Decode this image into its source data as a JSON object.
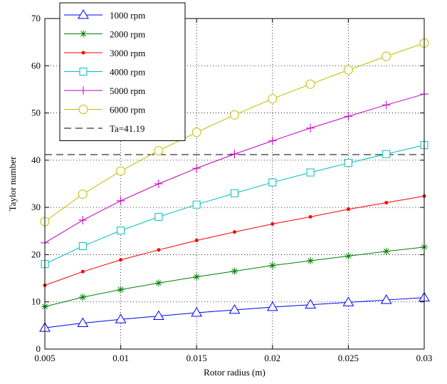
{
  "chart_data": {
    "type": "line",
    "xlabel": "Rotor radius (m)",
    "ylabel": "Taylor number",
    "xlim": [
      0.005,
      0.03
    ],
    "ylim": [
      0,
      70
    ],
    "x_ticks": [
      0.005,
      0.01,
      0.015,
      0.02,
      0.025,
      0.03
    ],
    "x_tick_labels": [
      "0.005",
      "0.01",
      "0.015",
      "0.02",
      "0.025",
      "0.03"
    ],
    "y_ticks": [
      0,
      10,
      20,
      30,
      40,
      50,
      60,
      70
    ],
    "y_tick_labels": [
      "0",
      "10",
      "20",
      "30",
      "40",
      "50",
      "60",
      "70"
    ],
    "grid": true,
    "legend_position": "top-left",
    "x": [
      0.005,
      0.0075,
      0.01,
      0.0125,
      0.015,
      0.0175,
      0.02,
      0.0225,
      0.025,
      0.0275,
      0.03
    ],
    "series": [
      {
        "name": "1000 rpm",
        "color": "#0000ff",
        "marker": "triangle",
        "values": [
          4.5,
          5.5,
          6.3,
          7.0,
          7.7,
          8.3,
          8.9,
          9.4,
          9.9,
          10.4,
          10.9
        ]
      },
      {
        "name": "2000 rpm",
        "color": "#008000",
        "marker": "asterisk",
        "values": [
          9.0,
          11.0,
          12.6,
          14.0,
          15.3,
          16.5,
          17.7,
          18.7,
          19.7,
          20.7,
          21.6
        ]
      },
      {
        "name": "3000 rpm",
        "color": "#ff0000",
        "marker": "dot",
        "values": [
          13.5,
          16.4,
          18.9,
          21.0,
          23.0,
          24.8,
          26.5,
          28.0,
          29.6,
          31.0,
          32.4
        ]
      },
      {
        "name": "4000 rpm",
        "color": "#00bfbf",
        "marker": "square",
        "values": [
          18.0,
          21.8,
          25.1,
          28.0,
          30.6,
          33.0,
          35.3,
          37.4,
          39.4,
          41.3,
          43.2
        ]
      },
      {
        "name": "5000 rpm",
        "color": "#bf00bf",
        "marker": "plus",
        "values": [
          22.5,
          27.3,
          31.4,
          35.0,
          38.3,
          41.3,
          44.1,
          46.8,
          49.3,
          51.7,
          54.0
        ]
      },
      {
        "name": "6000 rpm",
        "color": "#bfbf00",
        "marker": "circle",
        "values": [
          27.0,
          32.8,
          37.7,
          42.0,
          45.9,
          49.6,
          53.0,
          56.1,
          59.1,
          62.0,
          64.8
        ]
      }
    ],
    "reference_line": {
      "name": "Ta=41.19",
      "value": 41.19,
      "color": "#000000",
      "style": "dashed"
    }
  }
}
